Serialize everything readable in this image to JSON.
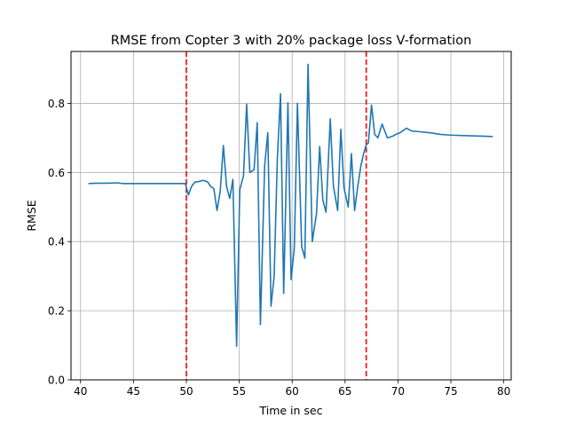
{
  "chart_data": {
    "type": "line",
    "title": "RMSE from Copter 3 with 20% package loss V-formation",
    "xlabel": "Time in sec",
    "ylabel": "RMSE",
    "xlim": [
      39.1,
      80.7
    ],
    "ylim": [
      0,
      0.95
    ],
    "xticks": [
      40,
      45,
      50,
      55,
      60,
      65,
      70,
      75,
      80
    ],
    "yticks": [
      0.0,
      0.2,
      0.4,
      0.6,
      0.8
    ],
    "xtick_labels": [
      "40",
      "45",
      "50",
      "55",
      "60",
      "65",
      "70",
      "75",
      "80"
    ],
    "ytick_labels": [
      "0.0",
      "0.2",
      "0.4",
      "0.6",
      "0.8"
    ],
    "grid": true,
    "line_color": "#1f77b4",
    "marker_line_color": "#ff0000",
    "vertical_markers": [
      50.0,
      67.0
    ],
    "series": [
      {
        "x": [
          40.8,
          41.5,
          42.5,
          43.5,
          44.0,
          45.0,
          46.0,
          47.0,
          48.0,
          49.0,
          49.9,
          50.2,
          50.5,
          50.8,
          51.2,
          51.6,
          52.0,
          52.3,
          52.6,
          52.9,
          53.2,
          53.5,
          53.8,
          54.1,
          54.4,
          54.75,
          55.05,
          55.4,
          55.7,
          56.0,
          56.4,
          56.7,
          57.0,
          57.4,
          57.7,
          58.0,
          58.3,
          58.6,
          58.9,
          59.2,
          59.6,
          59.9,
          60.2,
          60.5,
          60.9,
          61.2,
          61.5,
          61.9,
          62.3,
          62.6,
          62.9,
          63.2,
          63.6,
          63.9,
          64.3,
          64.6,
          64.9,
          65.3,
          65.6,
          65.9,
          66.2,
          66.5,
          66.8,
          67.0,
          67.2,
          67.5,
          67.8,
          68.1,
          68.5,
          69.0,
          69.5,
          69.8,
          70.2,
          70.8,
          71.3,
          72.0,
          73.0,
          74.0,
          75.0,
          76.0,
          77.0,
          78.0,
          78.9
        ],
        "y": [
          0.568,
          0.569,
          0.569,
          0.57,
          0.568,
          0.568,
          0.568,
          0.568,
          0.568,
          0.568,
          0.568,
          0.535,
          0.56,
          0.572,
          0.574,
          0.577,
          0.573,
          0.56,
          0.553,
          0.49,
          0.545,
          0.678,
          0.56,
          0.525,
          0.58,
          0.097,
          0.55,
          0.59,
          0.797,
          0.6,
          0.608,
          0.744,
          0.16,
          0.62,
          0.715,
          0.213,
          0.3,
          0.64,
          0.828,
          0.25,
          0.802,
          0.29,
          0.38,
          0.8,
          0.385,
          0.352,
          0.913,
          0.4,
          0.48,
          0.675,
          0.52,
          0.485,
          0.755,
          0.56,
          0.49,
          0.725,
          0.555,
          0.5,
          0.655,
          0.49,
          0.56,
          0.62,
          0.66,
          0.68,
          0.685,
          0.795,
          0.71,
          0.7,
          0.74,
          0.7,
          0.705,
          0.71,
          0.715,
          0.728,
          0.72,
          0.718,
          0.715,
          0.71,
          0.708,
          0.707,
          0.706,
          0.705,
          0.704
        ]
      }
    ]
  }
}
